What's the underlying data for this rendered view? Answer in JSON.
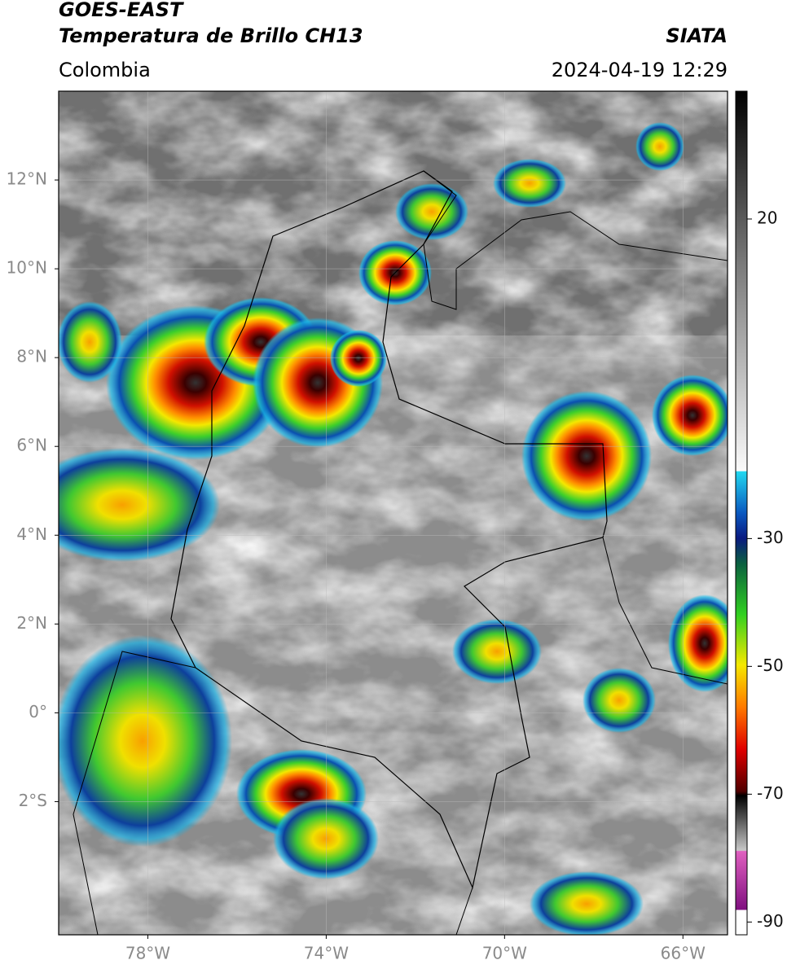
{
  "header": {
    "title_line1": "GOES-EAST",
    "title_line2": "Temperatura de Brillo CH13",
    "region": "Colombia",
    "source": "SIATA",
    "datetime": "2024-04-19 12:29"
  },
  "chart_data": {
    "type": "map",
    "xlim": [
      -80,
      -65
    ],
    "ylim": [
      -5,
      14
    ],
    "xticks": [
      {
        "value": -78,
        "label": "78°W"
      },
      {
        "value": -74,
        "label": "74°W"
      },
      {
        "value": -70,
        "label": "70°W"
      },
      {
        "value": -66,
        "label": "66°W"
      }
    ],
    "yticks": [
      {
        "value": 12,
        "label": "12°N"
      },
      {
        "value": 10,
        "label": "10°N"
      },
      {
        "value": 8,
        "label": "8°N"
      },
      {
        "value": 6,
        "label": "6°N"
      },
      {
        "value": 4,
        "label": "4°N"
      },
      {
        "value": 2,
        "label": "2°N"
      },
      {
        "value": 0,
        "label": "0°"
      },
      {
        "value": -2,
        "label": "2°S"
      }
    ],
    "grid": true,
    "colorbar": {
      "lim": [
        -92,
        40
      ],
      "ticks": [
        20,
        -30,
        -50,
        -70,
        -90
      ]
    }
  }
}
